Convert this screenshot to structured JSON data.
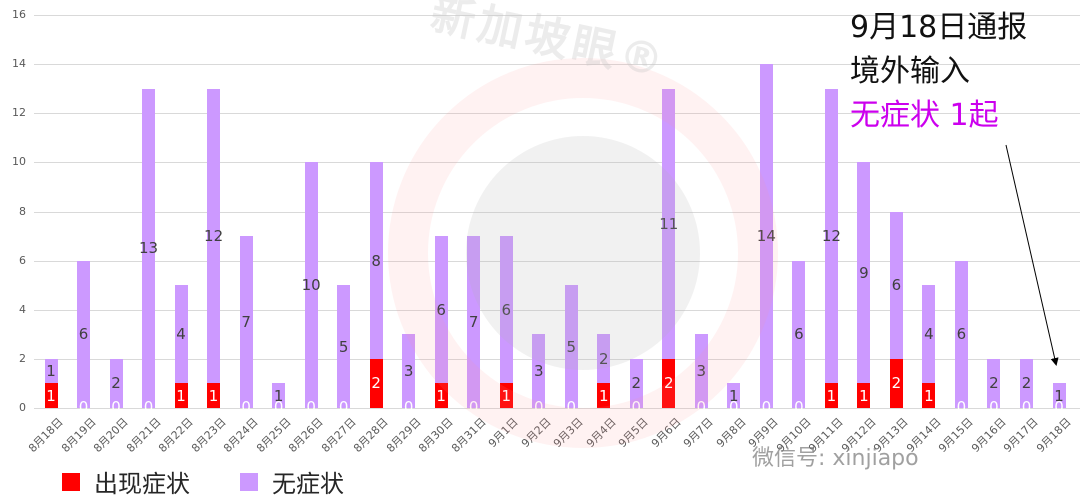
{
  "chart_data": {
    "type": "bar",
    "stacked": true,
    "title": "",
    "xlabel": "",
    "ylabel": "",
    "ylim": [
      0,
      16
    ],
    "yticks": [
      0,
      2,
      4,
      6,
      8,
      10,
      12,
      14,
      16
    ],
    "grid": true,
    "legend_position": "bottom-left",
    "categories": [
      "8月18日",
      "8月19日",
      "8月20日",
      "8月21日",
      "8月22日",
      "8月23日",
      "8月24日",
      "8月25日",
      "8月26日",
      "8月27日",
      "8月28日",
      "8月29日",
      "8月30日",
      "8月31日",
      "9月1日",
      "9月2日",
      "9月3日",
      "9月4日",
      "9月5日",
      "9月6日",
      "9月7日",
      "9月8日",
      "9月9日",
      "9月10日",
      "9月11日",
      "9月12日",
      "9月13日",
      "9月14日",
      "9月15日",
      "9月16日",
      "9月17日",
      "9月18日"
    ],
    "series": [
      {
        "name": "出现症状",
        "color": "#ff0000",
        "values": [
          1,
          0,
          0,
          0,
          1,
          1,
          0,
          0,
          0,
          0,
          2,
          0,
          1,
          0,
          1,
          0,
          0,
          1,
          0,
          2,
          0,
          0,
          0,
          0,
          1,
          1,
          2,
          1,
          0,
          0,
          0,
          0
        ]
      },
      {
        "name": "无症状",
        "color": "#cc99ff",
        "values": [
          1,
          6,
          2,
          13,
          4,
          12,
          7,
          1,
          10,
          5,
          8,
          3,
          6,
          7,
          6,
          3,
          5,
          2,
          2,
          11,
          3,
          1,
          14,
          6,
          12,
          9,
          6,
          4,
          6,
          2,
          2,
          1
        ]
      }
    ],
    "annotation": {
      "lines": [
        "9月18日通报",
        "境外输入"
      ],
      "highlight": "无症状 1起",
      "highlight_color": "#cc00ee",
      "points_to": "9月18日"
    }
  },
  "watermark": {
    "text": "新加坡眼®",
    "wechat": "微信号: xinjiapo"
  }
}
